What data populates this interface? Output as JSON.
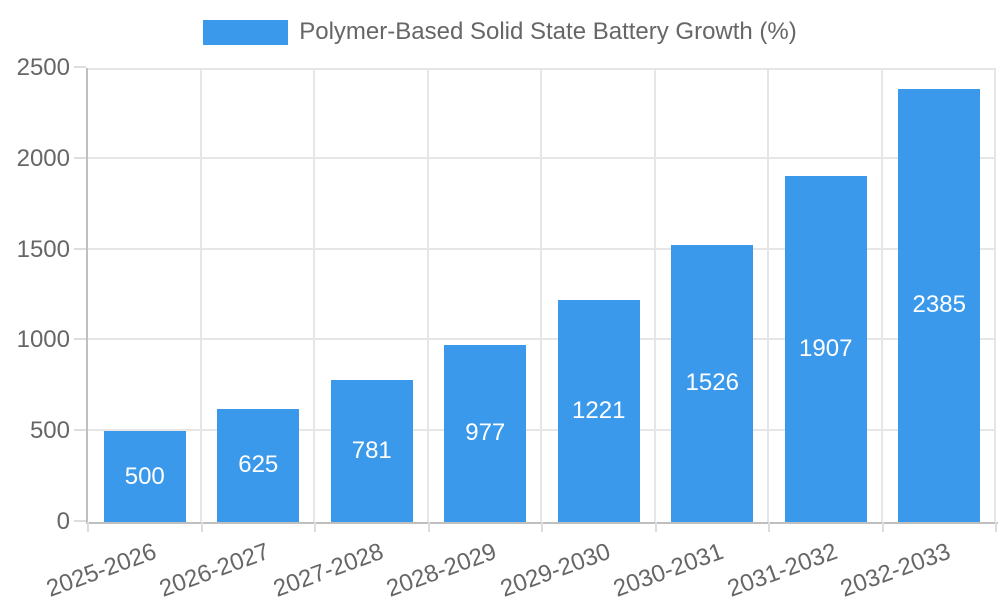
{
  "chart_data": {
    "type": "bar",
    "legend_label": "Polymer-Based Solid State Battery Growth (%)",
    "legend_position": "top",
    "categories": [
      "2025-2026",
      "2026-2027",
      "2027-2028",
      "2028-2029",
      "2029-2030",
      "2030-2031",
      "2031-2032",
      "2032-2033"
    ],
    "values": [
      500,
      625,
      781,
      977,
      1221,
      1526,
      1907,
      2385
    ],
    "value_labels": [
      "500",
      "625",
      "781",
      "977",
      "1221",
      "1526",
      "1907",
      "2385"
    ],
    "yticks": [
      0,
      500,
      1000,
      1500,
      2000,
      2500
    ],
    "ylim": [
      0,
      2500
    ],
    "grid": true,
    "colors": {
      "bar": "#3B99EC",
      "axis_text": "#666666",
      "value_label_text": "#FFFFFF",
      "gridline": "#E6E6E6",
      "axis_line": "#BFBFBF",
      "tick_mark": "#DDDDDD",
      "background": "#FFFFFF"
    }
  }
}
